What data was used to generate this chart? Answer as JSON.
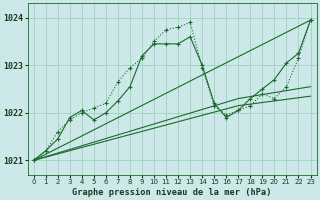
{
  "bg_color": "#cce8e8",
  "grid_color": "#99ccbb",
  "line_color": "#1a6b2a",
  "title": "Graphe pression niveau de la mer (hPa)",
  "xlim": [
    -0.5,
    23.5
  ],
  "ylim": [
    1020.7,
    1024.3
  ],
  "yticks": [
    1021,
    1022,
    1023,
    1024
  ],
  "xticks": [
    0,
    1,
    2,
    3,
    4,
    5,
    6,
    7,
    8,
    9,
    10,
    11,
    12,
    13,
    14,
    15,
    16,
    17,
    18,
    19,
    20,
    21,
    22,
    23
  ],
  "curve1_x": [
    0,
    1,
    2,
    3,
    4,
    5,
    6,
    7,
    8,
    9,
    10,
    11,
    12,
    13,
    14,
    15,
    16,
    17,
    18,
    19,
    20,
    21,
    22,
    23
  ],
  "curve1_y": [
    1021.0,
    1021.2,
    1021.45,
    1021.9,
    1022.05,
    1021.85,
    1022.0,
    1022.25,
    1022.55,
    1023.2,
    1023.45,
    1023.45,
    1023.45,
    1023.6,
    1023.0,
    1022.2,
    1021.9,
    1022.05,
    1022.3,
    1022.5,
    1022.7,
    1023.05,
    1023.25,
    1023.95
  ],
  "curve2_x": [
    0,
    1,
    2,
    3,
    4,
    5,
    6,
    7,
    8,
    9,
    10,
    11,
    12,
    13,
    14,
    15,
    16,
    17,
    18,
    19,
    20,
    21,
    22,
    23
  ],
  "curve2_y": [
    1021.0,
    1021.2,
    1021.6,
    1021.85,
    1022.0,
    1022.1,
    1022.2,
    1022.65,
    1022.95,
    1023.15,
    1023.5,
    1023.75,
    1023.8,
    1023.9,
    1022.95,
    1022.15,
    1021.95,
    1022.05,
    1022.15,
    1022.4,
    1022.3,
    1022.55,
    1023.15,
    1023.95
  ],
  "line1_x": [
    0,
    23
  ],
  "line1_y": [
    1021.0,
    1023.95
  ],
  "line2_x": [
    0,
    17,
    23
  ],
  "line2_y": [
    1021.0,
    1022.15,
    1022.35
  ],
  "line3_x": [
    0,
    17,
    23
  ],
  "line3_y": [
    1021.0,
    1022.3,
    1022.55
  ]
}
